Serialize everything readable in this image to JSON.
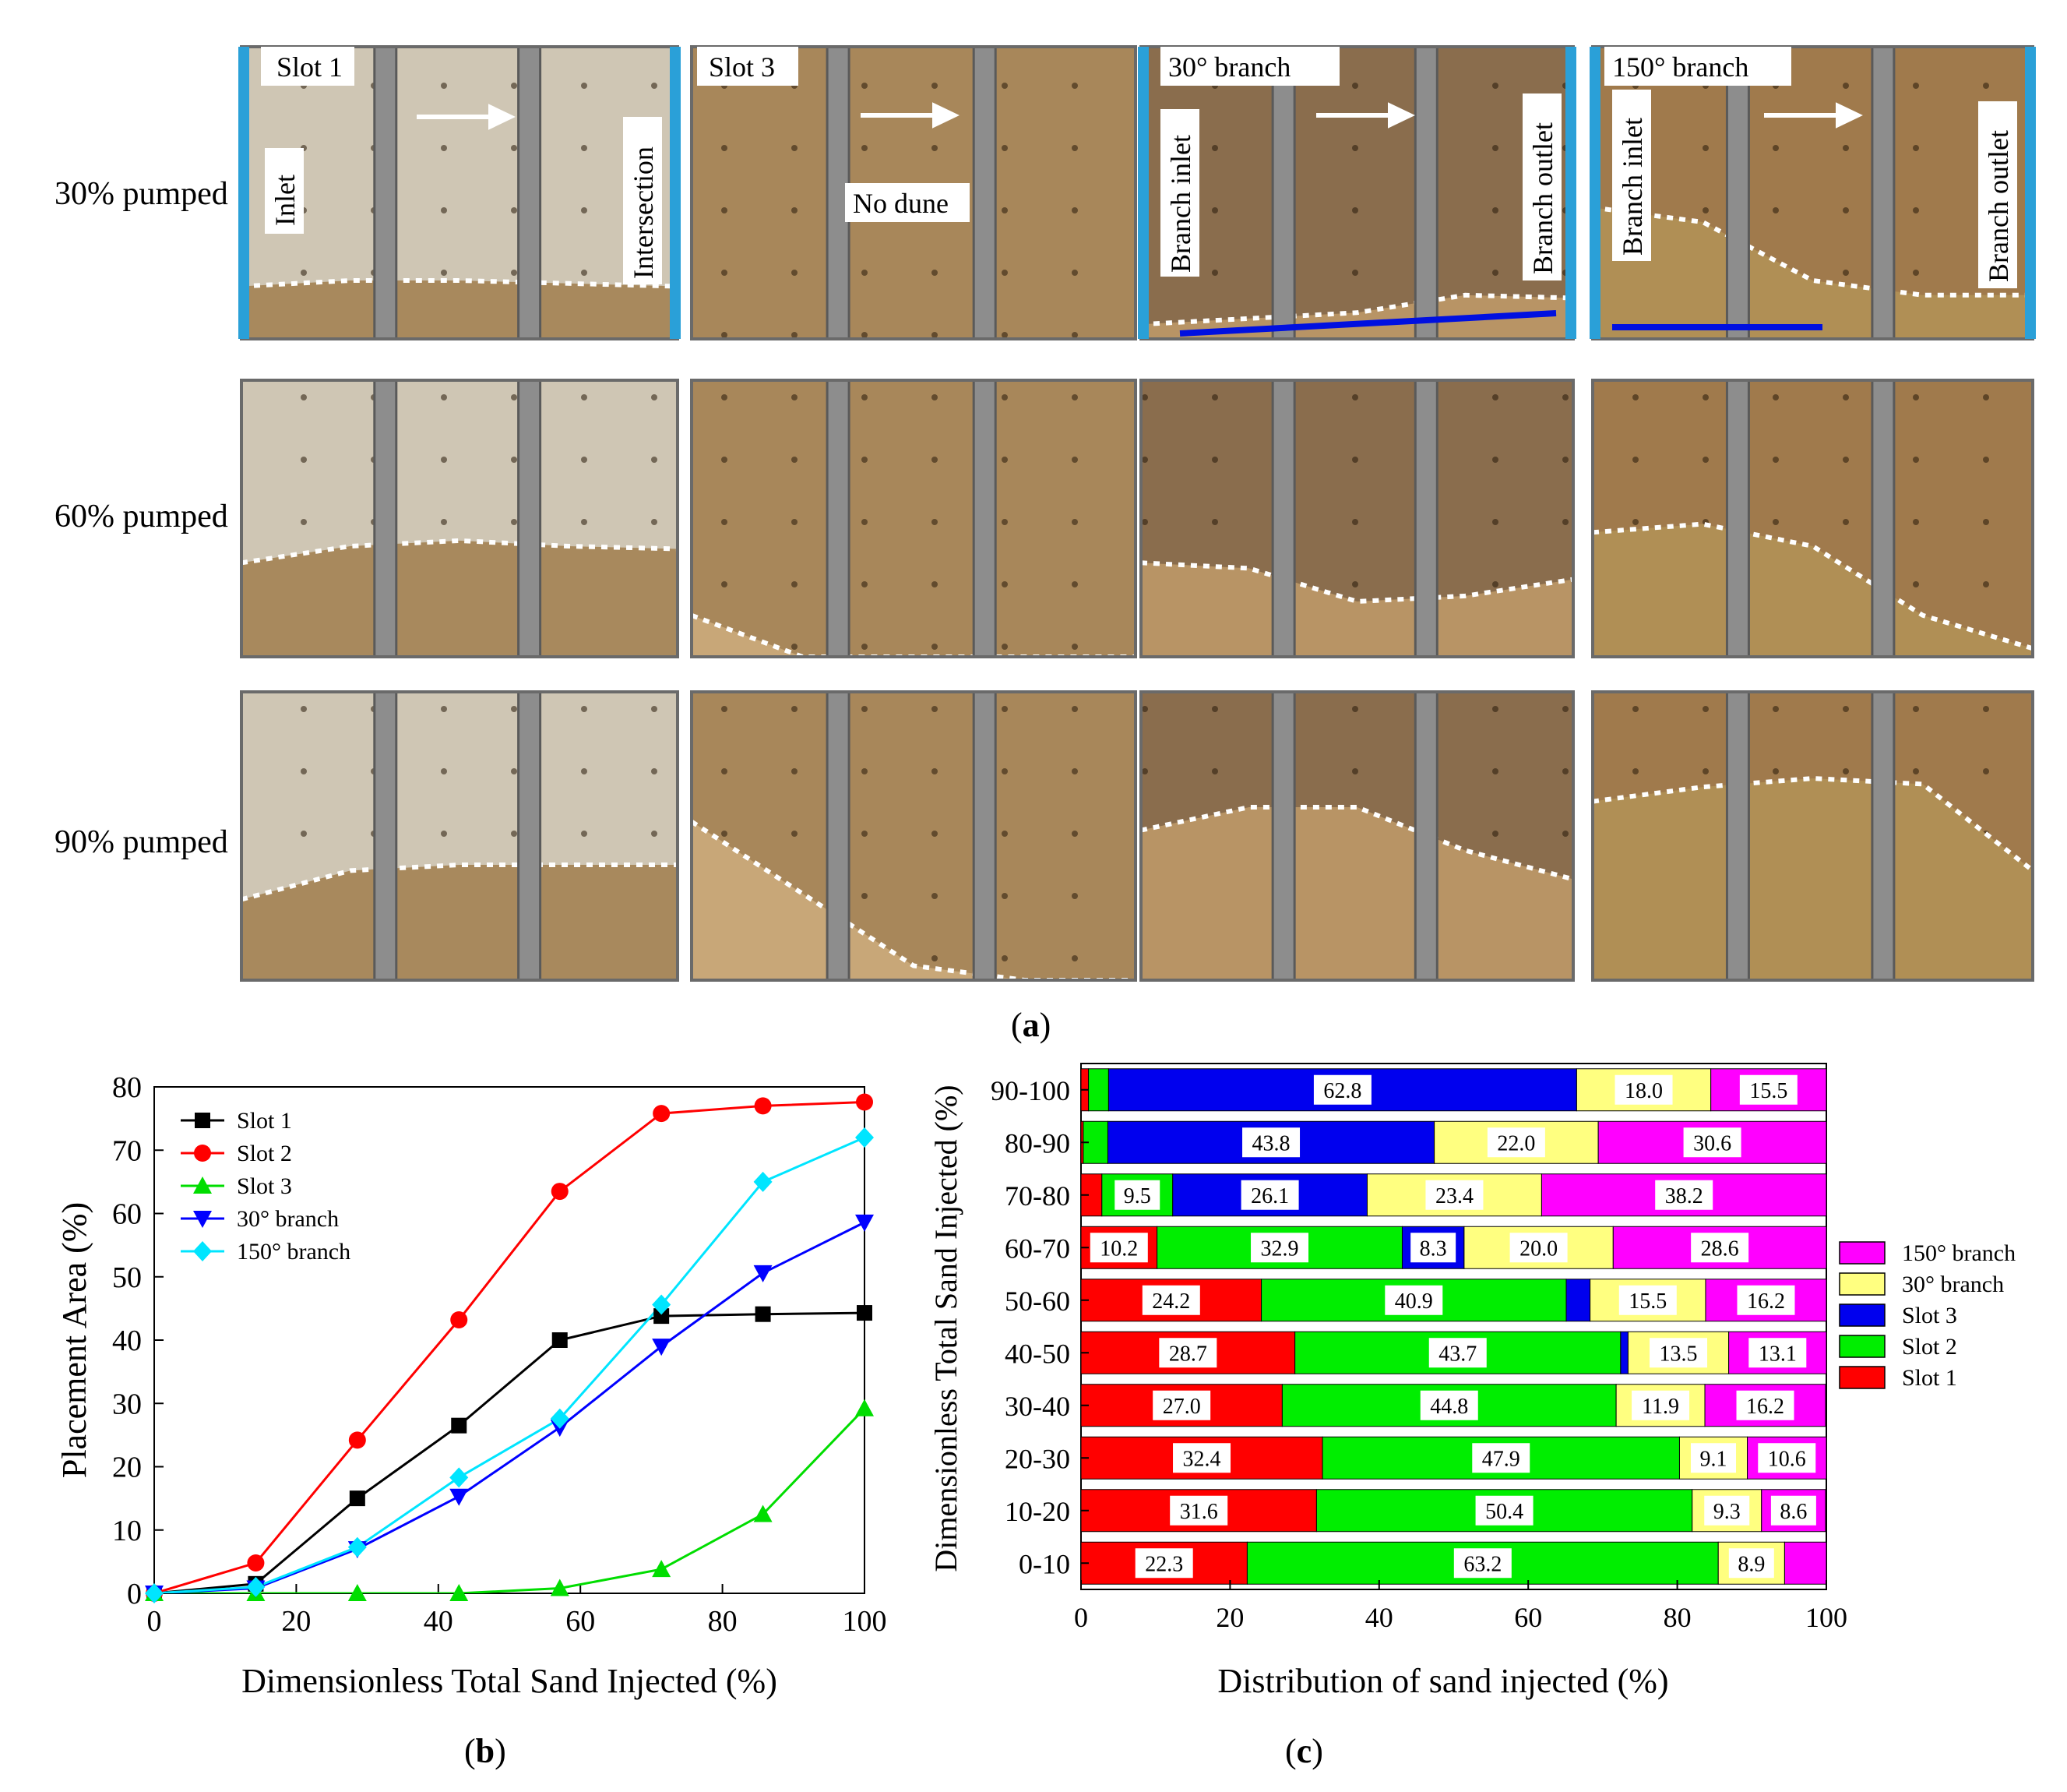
{
  "panel_a": {
    "label": "a",
    "row_labels": [
      "30% pumped",
      "60% pumped",
      "90% pumped"
    ],
    "column_headers": [
      "Slot 1",
      "Slot 3",
      "30° branch",
      "150° branch"
    ],
    "annotations": {
      "inlet": "Inlet",
      "intersection": "Intersection",
      "no_dune": "No dune",
      "branch_inlet": "Branch inlet",
      "branch_outlet": "Branch outlet"
    },
    "photo_tints": {
      "slot1_top": "#cfc6b4",
      "slot1_sand": "#a8895d",
      "slot3_top": "#a8875a",
      "slot3_sand": "#c8a778",
      "b30_top": "#8a6d4d",
      "b30_sand": "#b89465",
      "b150_top": "#a07a4c",
      "b150_sand": "#b08f55"
    }
  },
  "panel_b": {
    "label": "b"
  },
  "panel_c": {
    "label": "c"
  },
  "chart_data": [
    {
      "type": "line",
      "panel": "b",
      "xlabel": "Dimensionless Total Sand Injected (%)",
      "ylabel": "Placement Area (%)",
      "xlim": [
        0,
        100
      ],
      "ylim": [
        0,
        80
      ],
      "xticks": [
        0,
        20,
        40,
        60,
        80,
        100
      ],
      "yticks": [
        0,
        10,
        20,
        30,
        40,
        50,
        60,
        70,
        80
      ],
      "legend_position": "top-left",
      "x": [
        0,
        14.3,
        28.6,
        42.9,
        57.1,
        71.4,
        85.7,
        100
      ],
      "series": [
        {
          "name": "Slot 1",
          "marker": "square",
          "color": "#000000",
          "values": [
            0,
            1.5,
            15,
            26.5,
            40,
            43.8,
            44.1,
            44.3
          ]
        },
        {
          "name": "Slot 2",
          "marker": "circle",
          "color": "#ff0000",
          "values": [
            0,
            4.8,
            24.2,
            43.2,
            63.5,
            75.8,
            77.0,
            77.6
          ]
        },
        {
          "name": "Slot 3",
          "marker": "triangle-up",
          "color": "#00dd00",
          "values": [
            0,
            0,
            0,
            0,
            0.8,
            3.8,
            12.5,
            29.2
          ]
        },
        {
          "name": "30° branch",
          "marker": "triangle-down",
          "color": "#0000ff",
          "values": [
            0,
            0.8,
            7.0,
            15.3,
            26.2,
            39.0,
            50.6,
            58.6
          ]
        },
        {
          "name": "150° branch",
          "marker": "diamond",
          "color": "#00e5ff",
          "values": [
            0,
            1.0,
            7.3,
            18.3,
            27.6,
            45.6,
            65.0,
            72.0
          ]
        }
      ]
    },
    {
      "type": "bar",
      "orientation": "horizontal",
      "stacked": true,
      "panel": "c",
      "xlabel": "Distribution of sand injected (%)",
      "ylabel": "Dimensionless Total Sand Injected (%)",
      "xlim": [
        0,
        100
      ],
      "xticks": [
        0,
        20,
        40,
        60,
        80,
        100
      ],
      "legend_position": "right",
      "categories": [
        "0-10",
        "10-20",
        "20-30",
        "30-40",
        "40-50",
        "50-60",
        "60-70",
        "70-80",
        "80-90",
        "90-100"
      ],
      "series": [
        {
          "name": "Slot 1",
          "color": "#ff0000",
          "values": [
            22.3,
            31.6,
            32.4,
            27.0,
            28.7,
            24.2,
            10.2,
            2.8,
            0.3,
            1.0
          ],
          "labels": [
            "22.3",
            "31.6",
            "32.4",
            "27.0",
            "28.7",
            "24.2",
            "10.2",
            "",
            "",
            ""
          ]
        },
        {
          "name": "Slot 2",
          "color": "#00ee00",
          "values": [
            63.2,
            50.4,
            47.9,
            44.8,
            43.7,
            40.9,
            32.9,
            9.5,
            3.3,
            2.7
          ],
          "labels": [
            "63.2",
            "50.4",
            "47.9",
            "44.8",
            "43.7",
            "40.9",
            "32.9",
            "9.5",
            "",
            ""
          ]
        },
        {
          "name": "Slot 3",
          "color": "#0000ee",
          "values": [
            0,
            0,
            0,
            0,
            1.0,
            3.2,
            8.3,
            26.1,
            43.8,
            62.8
          ],
          "labels": [
            "",
            "",
            "",
            "",
            "",
            "",
            "8.3",
            "26.1",
            "43.8",
            "62.8"
          ]
        },
        {
          "name": "30° branch",
          "color": "#ffff80",
          "values": [
            8.9,
            9.3,
            9.1,
            11.9,
            13.5,
            15.5,
            20.0,
            23.4,
            22.0,
            18.0
          ],
          "labels": [
            "8.9",
            "9.3",
            "9.1",
            "11.9",
            "13.5",
            "15.5",
            "20.0",
            "23.4",
            "22.0",
            "18.0"
          ]
        },
        {
          "name": "150° branch",
          "color": "#ff00ff",
          "values": [
            5.6,
            8.6,
            10.6,
            16.2,
            13.1,
            16.2,
            28.6,
            38.2,
            30.6,
            15.5
          ],
          "labels": [
            "",
            "8.6",
            "10.6",
            "16.2",
            "13.1",
            "16.2",
            "28.6",
            "38.2",
            "30.6",
            "15.5"
          ]
        }
      ],
      "legend_order": [
        "150° branch",
        "30° branch",
        "Slot 3",
        "Slot 2",
        "Slot 1"
      ]
    }
  ]
}
